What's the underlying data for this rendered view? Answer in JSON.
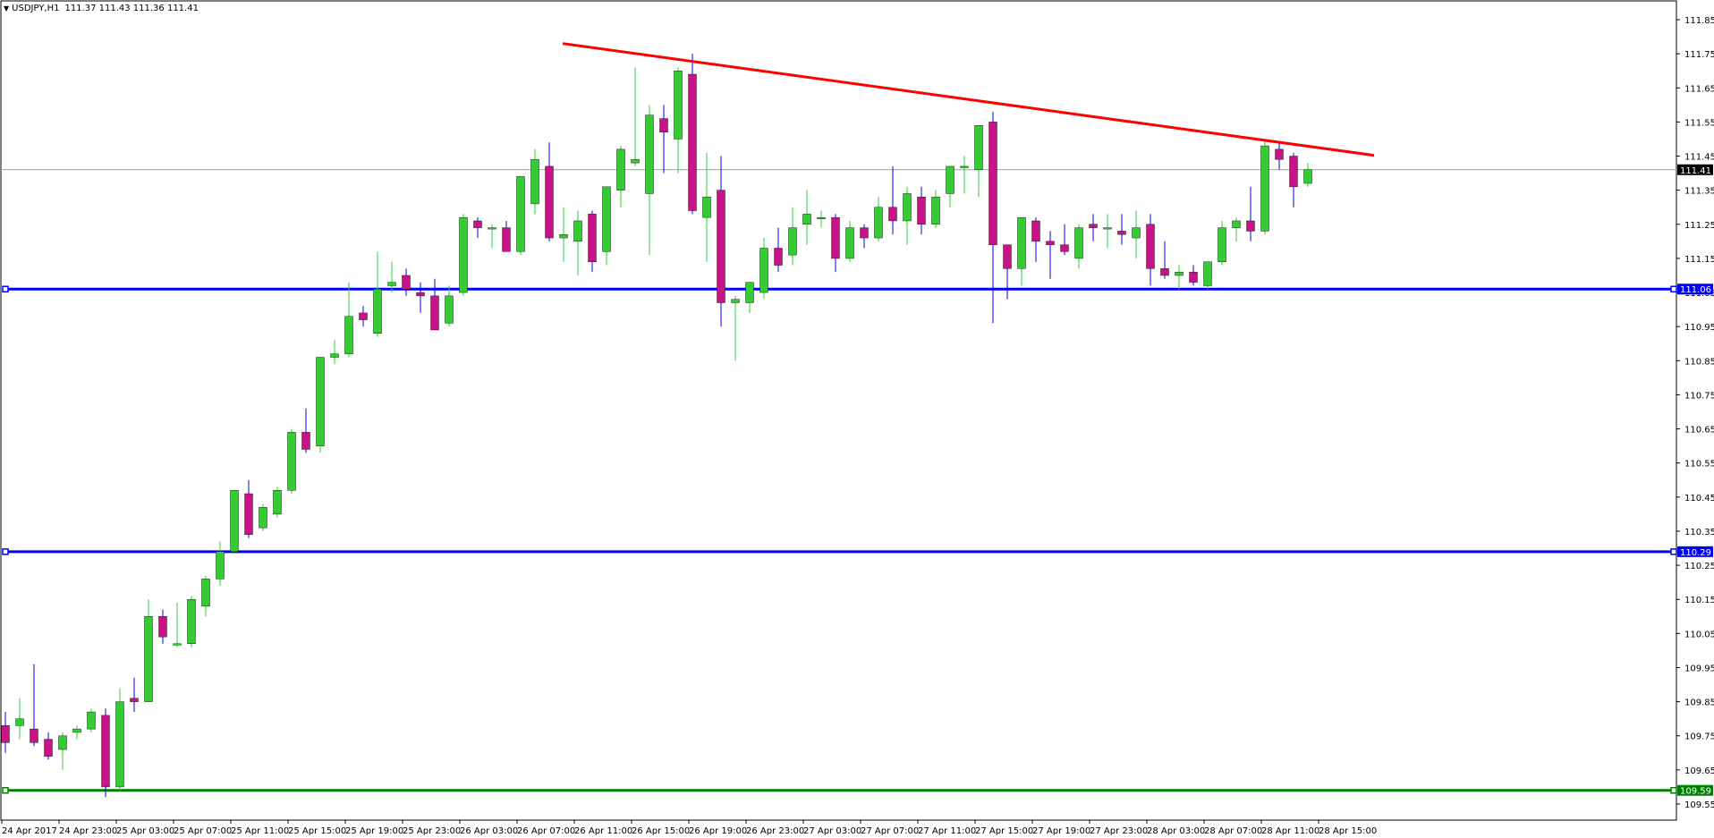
{
  "header": {
    "symbol": "USDJPY,H1",
    "ohlc": "111.37 111.43 111.36 111.41"
  },
  "chart_data": {
    "type": "candlestick",
    "title": "USDJPY,H1",
    "ylim": [
      109.5,
      111.85
    ],
    "yticks": [
      "111.85",
      "111.75",
      "111.65",
      "111.55",
      "111.45",
      "111.35",
      "111.25",
      "111.15",
      "111.05",
      "110.95",
      "110.85",
      "110.75",
      "110.65",
      "110.55",
      "110.45",
      "110.35",
      "110.25",
      "110.15",
      "110.05",
      "109.95",
      "109.85",
      "109.75",
      "109.65",
      "109.55"
    ],
    "xlabels": [
      "24 Apr 2017",
      "24 Apr 23:00",
      "25 Apr 03:00",
      "25 Apr 07:00",
      "25 Apr 11:00",
      "25 Apr 15:00",
      "25 Apr 19:00",
      "25 Apr 23:00",
      "26 Apr 03:00",
      "26 Apr 07:00",
      "26 Apr 11:00",
      "26 Apr 15:00",
      "26 Apr 19:00",
      "26 Apr 23:00",
      "27 Apr 03:00",
      "27 Apr 07:00",
      "27 Apr 11:00",
      "27 Apr 15:00",
      "27 Apr 19:00",
      "27 Apr 23:00",
      "28 Apr 03:00",
      "28 Apr 07:00",
      "28 Apr 11:00",
      "28 Apr 15:00"
    ],
    "current_price": "111.41",
    "hlines": [
      {
        "price": 111.06,
        "label": "111.06",
        "color": "#0000ff"
      },
      {
        "price": 110.29,
        "label": "110.29",
        "color": "#0000ff"
      },
      {
        "price": 109.59,
        "label": "109.59",
        "color": "#008000"
      }
    ],
    "trendline": {
      "from": {
        "bar": 39,
        "price": 111.78
      },
      "to": {
        "bar": 95,
        "price": 111.46
      },
      "color": "#ff0000"
    },
    "colors": {
      "bull": "#32cd32",
      "bear": "#c71585",
      "wick_bull": "#32cd32",
      "wick_bear": "#0000ff",
      "grid_price_line": "#8fa3a3"
    },
    "candles": [
      [
        109.78,
        109.82,
        109.7,
        109.73
      ],
      [
        109.78,
        109.86,
        109.74,
        109.8
      ],
      [
        109.77,
        109.96,
        109.72,
        109.73
      ],
      [
        109.74,
        109.76,
        109.68,
        109.69
      ],
      [
        109.71,
        109.76,
        109.65,
        109.75
      ],
      [
        109.76,
        109.78,
        109.74,
        109.77
      ],
      [
        109.77,
        109.83,
        109.76,
        109.82
      ],
      [
        109.81,
        109.83,
        109.57,
        109.6
      ],
      [
        109.6,
        109.89,
        109.59,
        109.85
      ],
      [
        109.86,
        109.92,
        109.82,
        109.85
      ],
      [
        109.85,
        110.15,
        109.85,
        110.1
      ],
      [
        110.1,
        110.12,
        110.02,
        110.04
      ],
      [
        110.02,
        110.14,
        110.01,
        110.02
      ],
      [
        110.02,
        110.16,
        110.01,
        110.15
      ],
      [
        110.13,
        110.22,
        110.1,
        110.21
      ],
      [
        110.21,
        110.32,
        110.19,
        110.29
      ],
      [
        110.29,
        110.47,
        110.29,
        110.47
      ],
      [
        110.46,
        110.5,
        110.33,
        110.34
      ],
      [
        110.36,
        110.43,
        110.35,
        110.42
      ],
      [
        110.4,
        110.48,
        110.39,
        110.47
      ],
      [
        110.47,
        110.65,
        110.46,
        110.64
      ],
      [
        110.64,
        110.71,
        110.58,
        110.59
      ],
      [
        110.6,
        110.86,
        110.58,
        110.86
      ],
      [
        110.86,
        110.91,
        110.84,
        110.87
      ],
      [
        110.87,
        111.08,
        110.86,
        110.98
      ],
      [
        110.99,
        111.01,
        110.95,
        110.97
      ],
      [
        110.93,
        111.17,
        110.92,
        111.06
      ],
      [
        111.07,
        111.14,
        111.05,
        111.08
      ],
      [
        111.1,
        111.12,
        111.04,
        111.06
      ],
      [
        111.05,
        111.08,
        110.99,
        111.04
      ],
      [
        111.04,
        111.09,
        110.96,
        110.94
      ],
      [
        110.96,
        111.07,
        110.95,
        111.04
      ],
      [
        111.05,
        111.28,
        111.04,
        111.27
      ],
      [
        111.26,
        111.27,
        111.21,
        111.24
      ],
      [
        111.24,
        111.25,
        111.18,
        111.24
      ],
      [
        111.24,
        111.26,
        111.17,
        111.17
      ],
      [
        111.17,
        111.39,
        111.16,
        111.39
      ],
      [
        111.31,
        111.47,
        111.28,
        111.44
      ],
      [
        111.42,
        111.49,
        111.2,
        111.21
      ],
      [
        111.21,
        111.3,
        111.14,
        111.22
      ],
      [
        111.2,
        111.29,
        111.1,
        111.26
      ],
      [
        111.28,
        111.29,
        111.11,
        111.14
      ],
      [
        111.17,
        111.35,
        111.13,
        111.36
      ],
      [
        111.35,
        111.48,
        111.3,
        111.47
      ],
      [
        111.43,
        111.71,
        111.42,
        111.44
      ],
      [
        111.34,
        111.6,
        111.16,
        111.57
      ],
      [
        111.56,
        111.6,
        111.4,
        111.52
      ],
      [
        111.5,
        111.71,
        111.4,
        111.7
      ],
      [
        111.69,
        111.75,
        111.28,
        111.29
      ],
      [
        111.27,
        111.46,
        111.14,
        111.33
      ],
      [
        111.35,
        111.45,
        110.95,
        111.02
      ],
      [
        111.02,
        111.04,
        110.85,
        111.03
      ],
      [
        111.02,
        111.08,
        110.99,
        111.08
      ],
      [
        111.05,
        111.21,
        111.03,
        111.18
      ],
      [
        111.18,
        111.24,
        111.11,
        111.13
      ],
      [
        111.16,
        111.3,
        111.13,
        111.24
      ],
      [
        111.25,
        111.35,
        111.19,
        111.28
      ],
      [
        111.27,
        111.29,
        111.24,
        111.27
      ],
      [
        111.27,
        111.28,
        111.11,
        111.15
      ],
      [
        111.15,
        111.26,
        111.14,
        111.24
      ],
      [
        111.24,
        111.25,
        111.18,
        111.21
      ],
      [
        111.21,
        111.33,
        111.2,
        111.3
      ],
      [
        111.3,
        111.42,
        111.22,
        111.26
      ],
      [
        111.26,
        111.36,
        111.19,
        111.34
      ],
      [
        111.33,
        111.36,
        111.22,
        111.25
      ],
      [
        111.25,
        111.35,
        111.24,
        111.33
      ],
      [
        111.34,
        111.42,
        111.3,
        111.42
      ],
      [
        111.42,
        111.45,
        111.34,
        111.42
      ],
      [
        111.41,
        111.53,
        111.33,
        111.54
      ],
      [
        111.55,
        111.58,
        110.96,
        111.19
      ],
      [
        111.19,
        111.19,
        111.03,
        111.12
      ],
      [
        111.12,
        111.27,
        111.07,
        111.27
      ],
      [
        111.26,
        111.27,
        111.14,
        111.2
      ],
      [
        111.2,
        111.23,
        111.09,
        111.19
      ],
      [
        111.19,
        111.25,
        111.16,
        111.17
      ],
      [
        111.15,
        111.25,
        111.12,
        111.24
      ],
      [
        111.25,
        111.28,
        111.2,
        111.24
      ],
      [
        111.24,
        111.28,
        111.18,
        111.24
      ],
      [
        111.23,
        111.28,
        111.19,
        111.22
      ],
      [
        111.21,
        111.29,
        111.15,
        111.24
      ],
      [
        111.25,
        111.28,
        111.07,
        111.12
      ],
      [
        111.12,
        111.2,
        111.09,
        111.1
      ],
      [
        111.1,
        111.13,
        111.06,
        111.11
      ],
      [
        111.11,
        111.13,
        111.07,
        111.08
      ],
      [
        111.07,
        111.14,
        111.06,
        111.14
      ],
      [
        111.14,
        111.26,
        111.13,
        111.24
      ],
      [
        111.24,
        111.27,
        111.2,
        111.26
      ],
      [
        111.26,
        111.36,
        111.2,
        111.23
      ],
      [
        111.23,
        111.5,
        111.22,
        111.48
      ],
      [
        111.47,
        111.49,
        111.41,
        111.44
      ],
      [
        111.45,
        111.46,
        111.3,
        111.36
      ],
      [
        111.37,
        111.43,
        111.36,
        111.41
      ]
    ]
  }
}
